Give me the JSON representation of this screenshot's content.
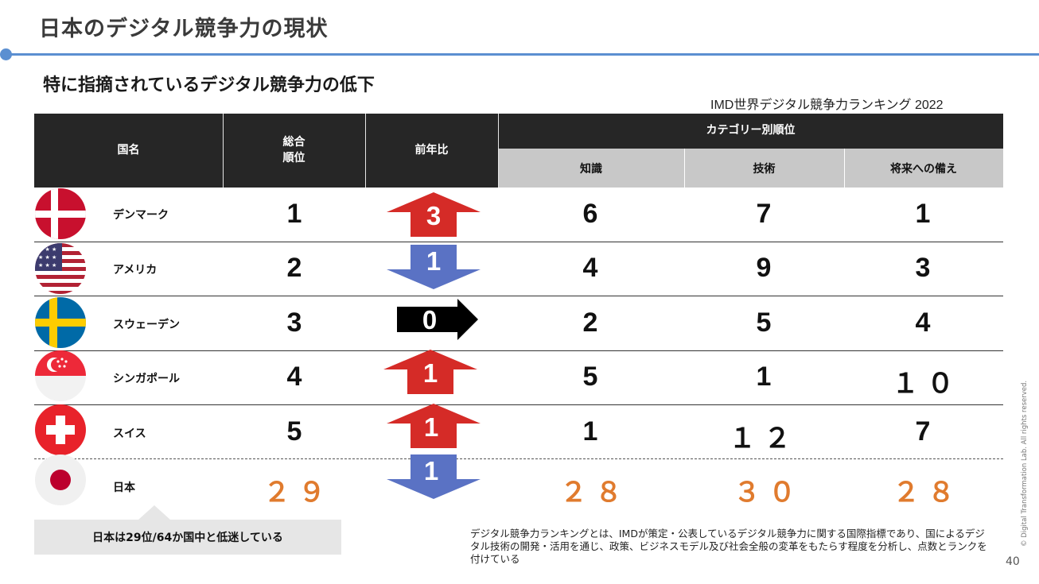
{
  "page": {
    "title": "日本のデジタル競争力の現状",
    "subtitle": "特に指摘されているデジタル競争力の低下",
    "source": "IMD世界デジタル競争力ランキング 2022",
    "page_number": "40",
    "copyright": "© Digital Transformation Lab. All rights reserved."
  },
  "table": {
    "headers": {
      "country": "国名",
      "overall": "総合\n順位",
      "change": "前年比",
      "category": "カテゴリー別順位",
      "knowledge": "知識",
      "technology": "技術",
      "future": "将来への備え"
    },
    "rows": [
      {
        "country": "デンマーク",
        "overall": "1",
        "change": "3",
        "direction": "up",
        "arrow_color": "#d52b27",
        "knowledge": "6",
        "technology": "7",
        "future": "1"
      },
      {
        "country": "アメリカ",
        "overall": "2",
        "change": "1",
        "direction": "down",
        "arrow_color": "#5a72c4",
        "knowledge": "4",
        "technology": "9",
        "future": "3"
      },
      {
        "country": "スウェーデン",
        "overall": "3",
        "change": "0",
        "direction": "right",
        "arrow_color": "#000000",
        "knowledge": "2",
        "technology": "5",
        "future": "4"
      },
      {
        "country": "シンガポール",
        "overall": "4",
        "change": "1",
        "direction": "up",
        "arrow_color": "#d52b27",
        "knowledge": "5",
        "technology": "1",
        "future": "１０"
      },
      {
        "country": "スイス",
        "overall": "5",
        "change": "1",
        "direction": "up",
        "arrow_color": "#d52b27",
        "knowledge": "1",
        "technology": "１２",
        "future": "7"
      },
      {
        "country": "日本",
        "overall": "２９",
        "change": "1",
        "direction": "down",
        "arrow_color": "#5a72c4",
        "knowledge": "２８",
        "technology": "３０",
        "future": "２８",
        "highlight_color": "#e07b2e"
      }
    ]
  },
  "callout": "日本は29位/64か国中と低迷している",
  "note": "デジタル競争力ランキングとは、IMDが策定・公表しているデジタル競争力に関する国際指標であり、国によるデジタル技術の開発・活用を通じ、政策、ビジネスモデル及び社会全般の変革をもたらす程度を分析し、点数とランクを付けている",
  "colors": {
    "accent": "#5b8fd1",
    "header_dark": "#262626",
    "header_gray": "#c8c8c8",
    "up": "#d52b27",
    "down": "#5a72c4",
    "japan": "#e07b2e"
  }
}
